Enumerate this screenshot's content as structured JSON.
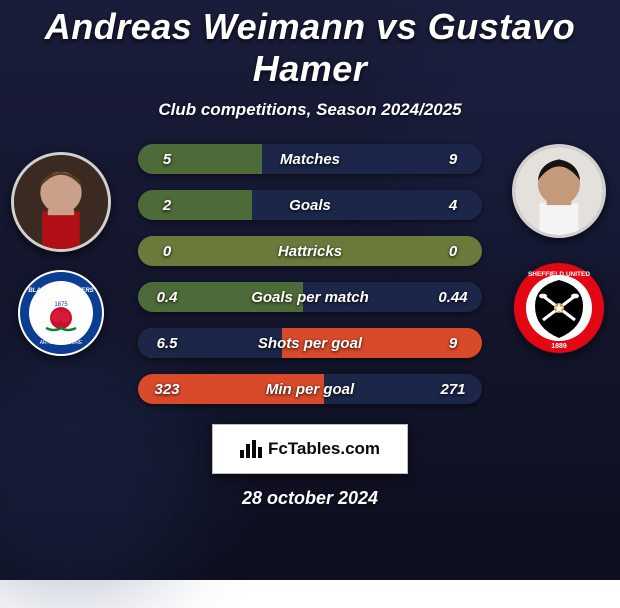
{
  "title": "Andreas Weimann vs Gustavo Hamer",
  "subtitle": "Club competitions, Season 2024/2025",
  "date": "28 october 2024",
  "brand": "FcTables.com",
  "colors": {
    "bg_top": "#1a1d3a",
    "bg_bottom": "#0d0f1f",
    "neutral_green": "#4d6b38",
    "neutral_dark": "#1b2648",
    "left_accent": "#d94a2b",
    "right_accent": "#d94a2b",
    "neutral_olive": "#6a7a3a",
    "title_color": "#ffffff"
  },
  "players": {
    "left": {
      "name": "Andreas Weimann",
      "club": "Blackburn Rovers",
      "avatar_bg": "#8a6a5a",
      "club_colors": {
        "outer": "#0b3d91",
        "inner": "#ffffff",
        "accent": "#c80f2e"
      }
    },
    "right": {
      "name": "Gustavo Hamer",
      "club": "Sheffield United",
      "avatar_bg": "#d8d4cf",
      "club_colors": {
        "outer": "#e30613",
        "inner": "#000000",
        "accent": "#ffffff"
      }
    }
  },
  "stats": [
    {
      "label": "Matches",
      "left_val": "5",
      "right_val": "9",
      "left_pct": 36,
      "left_color": "#4d6b38",
      "right_color": "#1b2648"
    },
    {
      "label": "Goals",
      "left_val": "2",
      "right_val": "4",
      "left_pct": 33,
      "left_color": "#4d6b38",
      "right_color": "#1b2648"
    },
    {
      "label": "Hattricks",
      "left_val": "0",
      "right_val": "0",
      "left_pct": 50,
      "left_color": "#6a7a3a",
      "right_color": "#6a7a3a"
    },
    {
      "label": "Goals per match",
      "left_val": "0.4",
      "right_val": "0.44",
      "left_pct": 48,
      "left_color": "#4d6b38",
      "right_color": "#1b2648"
    },
    {
      "label": "Shots per goal",
      "left_val": "6.5",
      "right_val": "9",
      "left_pct": 42,
      "left_color": "#1b2648",
      "right_color": "#d94a2b"
    },
    {
      "label": "Min per goal",
      "left_val": "323",
      "right_val": "271",
      "left_pct": 54,
      "left_color": "#d94a2b",
      "right_color": "#1b2648"
    }
  ]
}
